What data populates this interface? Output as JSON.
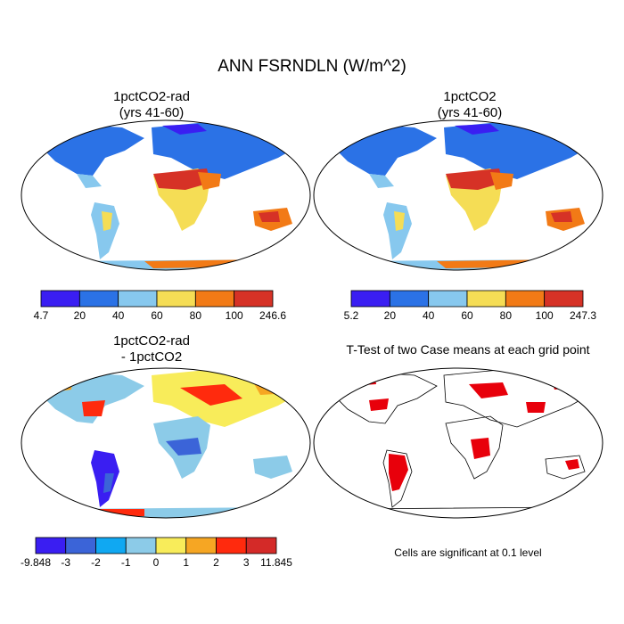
{
  "title": "ANN FSRNDLN (W/m^2)",
  "panels": {
    "top_left": {
      "title": "1pctCO2-rad\n(yrs 41-60)"
    },
    "top_right": {
      "title": "1pctCO2\n(yrs 41-60)"
    },
    "bottom_left": {
      "title": "1pctCO2-rad\n - 1pctCO2"
    },
    "bottom_right": {
      "title": "T-Test of two Case means at each grid point",
      "note": "Cells are significant at 0.1 level"
    }
  },
  "colorbars": {
    "top_left": {
      "colors": [
        "#3a1ef2",
        "#2b72e6",
        "#87c8ee",
        "#f5dd55",
        "#f27a16",
        "#d63226"
      ],
      "labels": [
        "4.7",
        "20",
        "40",
        "60",
        "80",
        "100",
        "246.6"
      ]
    },
    "top_right": {
      "colors": [
        "#3a1ef2",
        "#2b72e6",
        "#87c8ee",
        "#f5dd55",
        "#f27a16",
        "#d63226"
      ],
      "labels": [
        "5.2",
        "20",
        "40",
        "60",
        "80",
        "100",
        "247.3"
      ]
    },
    "bottom_left": {
      "colors": [
        "#3a1ef2",
        "#3b64d8",
        "#10a8f2",
        "#8ccbe8",
        "#f8ec5a",
        "#f6a623",
        "#ff2a0d",
        "#d42a28"
      ],
      "labels": [
        "-9.848",
        "-3",
        "-2",
        "-1",
        "0",
        "1",
        "2",
        "3",
        "11.845"
      ]
    }
  },
  "significance_color": "#e8000b"
}
